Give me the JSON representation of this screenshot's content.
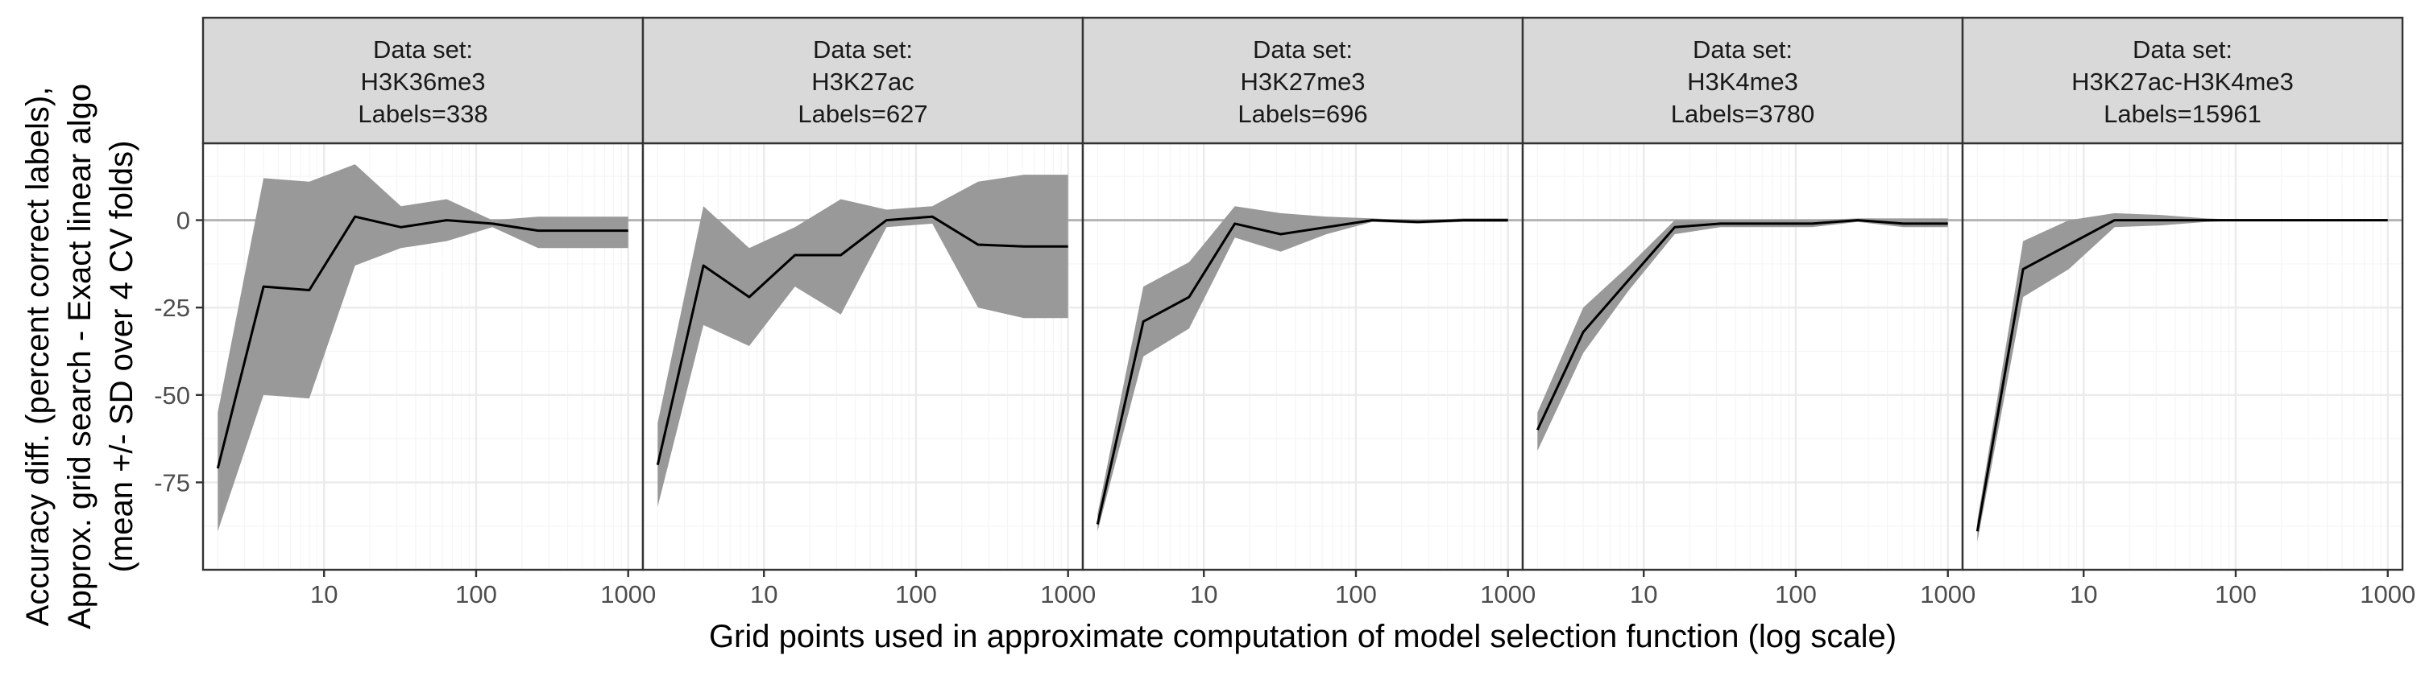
{
  "chart_data": {
    "type": "area",
    "y_title_lines": [
      "Accuracy diff. (percent correct labels),",
      "Approx. grid search - Exact linear algo",
      "(mean +/- SD over 4 CV folds)"
    ],
    "xlabel": "Grid points used in approximate computation of model selection function (log scale)",
    "x_scale": "log10",
    "xlim": [
      1.6,
      1250
    ],
    "ylim": [
      -100,
      22
    ],
    "x_ticks": [
      10,
      100,
      1000
    ],
    "x_tick_labels": [
      "10",
      "100",
      "1000"
    ],
    "y_ticks": [
      -75,
      -50,
      -25,
      0
    ],
    "y_tick_labels": [
      "-75",
      "-50",
      "-25",
      "0"
    ],
    "grid": true,
    "reference_line_y": 0,
    "colors": {
      "line": "#000000",
      "ribbon": "#999999",
      "zero_line": "#b3b3b3",
      "strip_fill": "#d9d9d9",
      "grid_major": "#ebebeb",
      "grid_minor": "#f5f5f5",
      "panel_border": "#333333"
    },
    "panels": [
      {
        "strip": [
          "Data set:",
          "H3K36me3",
          "Labels=338"
        ],
        "x": [
          2,
          4,
          8,
          16,
          32,
          64,
          128,
          256,
          512,
          1000
        ],
        "mean": [
          -71,
          -19,
          -20,
          1,
          -2,
          0,
          -1,
          -3,
          -3,
          -3
        ],
        "upper": [
          -55,
          12,
          11,
          16,
          4,
          6,
          0,
          1,
          1,
          1
        ],
        "lower": [
          -89,
          -50,
          -51,
          -13,
          -8,
          -6,
          -2,
          -8,
          -8,
          -8
        ]
      },
      {
        "strip": [
          "Data set:",
          "H3K27ac",
          "Labels=627"
        ],
        "x": [
          2,
          4,
          8,
          16,
          32,
          64,
          128,
          256,
          512,
          1000
        ],
        "mean": [
          -70,
          -13,
          -22,
          -10,
          -10,
          0,
          1,
          -7,
          -7.5,
          -7.5
        ],
        "upper": [
          -58,
          4,
          -8,
          -2,
          6,
          3,
          4,
          11,
          13,
          13
        ],
        "lower": [
          -82,
          -30,
          -36,
          -19,
          -27,
          -2,
          -1,
          -25,
          -28,
          -28
        ]
      },
      {
        "strip": [
          "Data set:",
          "H3K27me3",
          "Labels=696"
        ],
        "x": [
          2,
          4,
          8,
          16,
          32,
          64,
          128,
          256,
          512,
          1000
        ],
        "mean": [
          -87,
          -29,
          -22,
          -1,
          -4,
          -2,
          0,
          -0.5,
          0,
          0
        ],
        "upper": [
          -84,
          -19,
          -12,
          4,
          2,
          1,
          0.5,
          0,
          0.5,
          0.5
        ],
        "lower": [
          -89,
          -39,
          -31,
          -5,
          -9,
          -4,
          -0.5,
          -1,
          -0.5,
          -0.5
        ]
      },
      {
        "strip": [
          "Data set:",
          "H3K4me3",
          "Labels=3780"
        ],
        "x": [
          2,
          4,
          8,
          16,
          32,
          64,
          128,
          256,
          512,
          1000
        ],
        "mean": [
          -60,
          -32,
          -17,
          -2,
          -1,
          -1,
          -1,
          0,
          -1,
          -1
        ],
        "upper": [
          -55,
          -25,
          -13,
          0,
          0,
          0,
          0,
          0.5,
          0.5,
          0.5
        ],
        "lower": [
          -66,
          -38,
          -20,
          -4,
          -2,
          -2,
          -2,
          -0.5,
          -2,
          -2
        ]
      },
      {
        "strip": [
          "Data set:",
          "H3K27ac-H3K4me3",
          "Labels=15961"
        ],
        "x": [
          2,
          4,
          8,
          16,
          32,
          64,
          128,
          256,
          512,
          1000
        ],
        "mean": [
          -89,
          -14,
          -7,
          0,
          0,
          0,
          0,
          0,
          0,
          0
        ],
        "upper": [
          -86,
          -6,
          0,
          2,
          1.5,
          0.5,
          0,
          0,
          0,
          0
        ],
        "lower": [
          -92,
          -22,
          -14,
          -2,
          -1.5,
          -0.5,
          0,
          0,
          0,
          0
        ]
      }
    ]
  }
}
